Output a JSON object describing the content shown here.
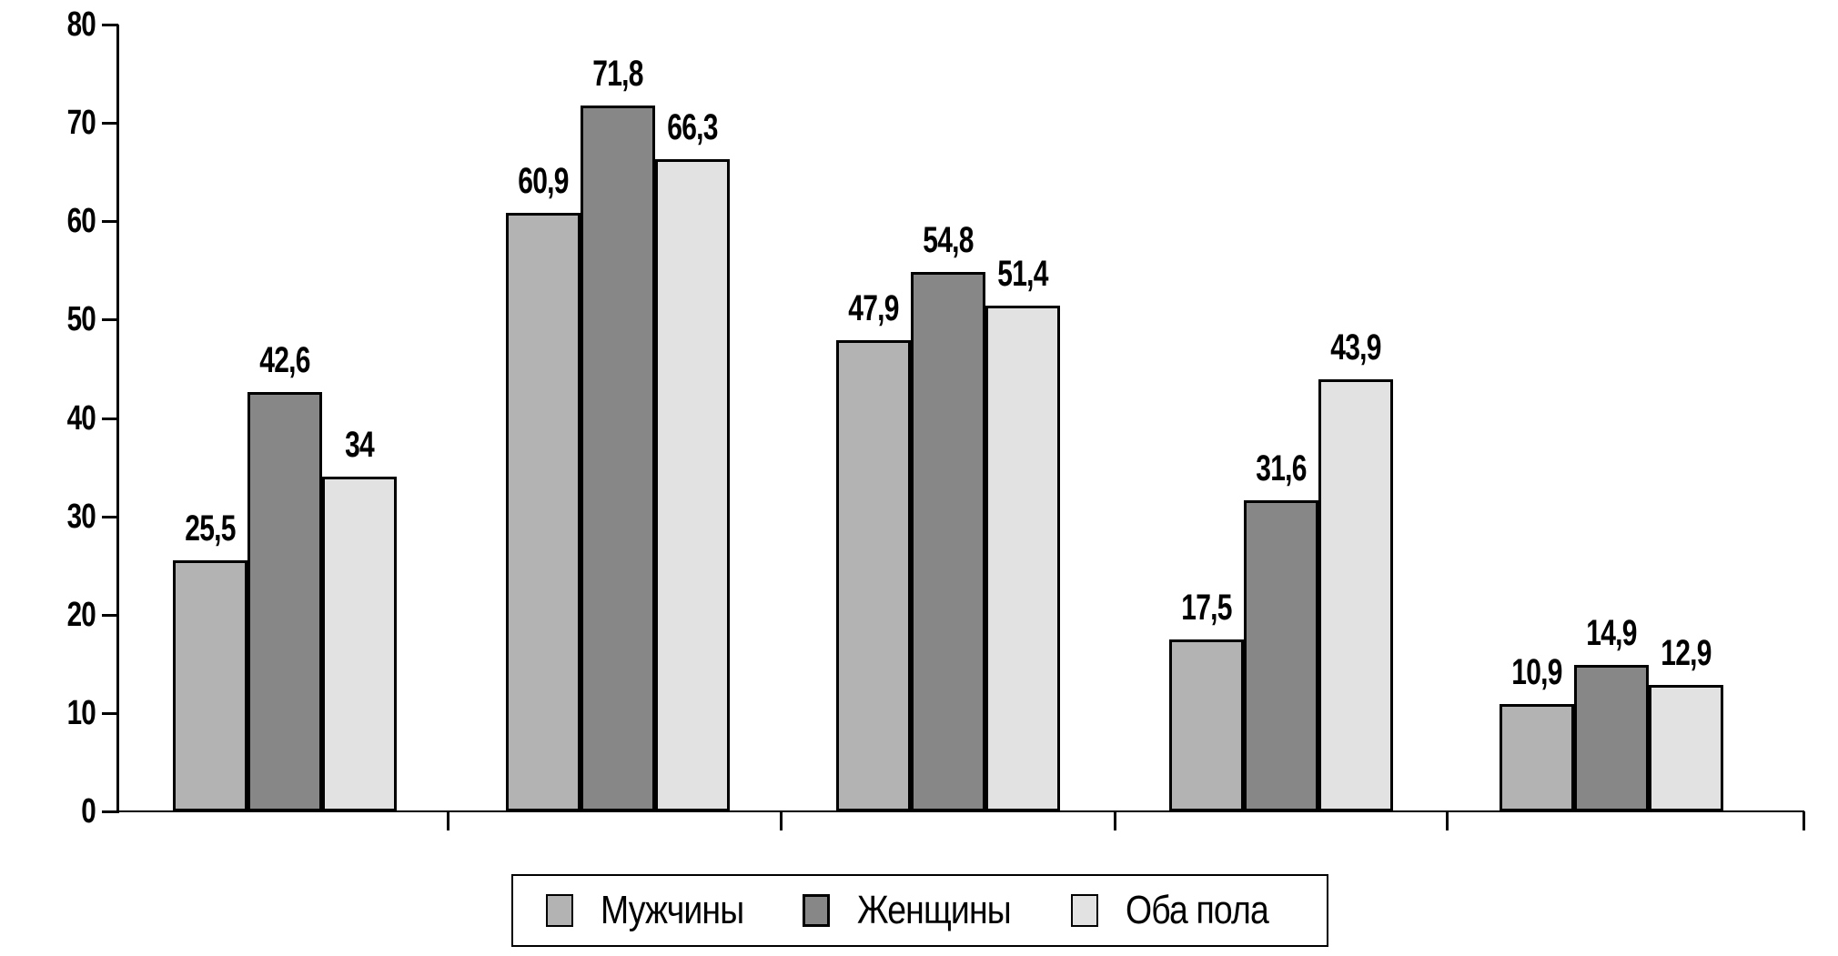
{
  "chart_data": {
    "type": "bar",
    "title": "",
    "xlabel": "",
    "ylabel": "",
    "categories": [
      "",
      "",
      "",
      "",
      ""
    ],
    "series": [
      {
        "name": "Мужчины",
        "color": "#b3b3b3",
        "values": [
          25.5,
          60.9,
          47.9,
          17.5,
          10.9
        ]
      },
      {
        "name": "Женщины",
        "color": "#878787",
        "values": [
          42.6,
          71.8,
          54.8,
          31.6,
          14.9
        ]
      },
      {
        "name": "Оба пола",
        "color": "#e2e2e2",
        "values": [
          34,
          66.3,
          51.4,
          43.9,
          12.9
        ]
      }
    ],
    "value_labels": [
      [
        "25,5",
        "60,9",
        "47,9",
        "17,5",
        "10,9"
      ],
      [
        "42,6",
        "71,8",
        "54,8",
        "31,6",
        "14,9"
      ],
      [
        "34",
        "66,3",
        "51,4",
        "43,9",
        "12,9"
      ]
    ],
    "ylim": [
      0,
      80
    ],
    "ytick_step": 10,
    "ytick_labels": [
      "0",
      "10",
      "20",
      "30",
      "40",
      "50",
      "60",
      "70",
      "80"
    ],
    "grid": false,
    "legend_position": "bottom",
    "decimal_separator": ",",
    "bar_border_color": "#000000",
    "axis_color": "#000000",
    "background_color": "#ffffff"
  },
  "legend": {
    "items": [
      {
        "label": "Мужчины",
        "color": "#b3b3b3"
      },
      {
        "label": "Женщины",
        "color": "#878787"
      },
      {
        "label": "Оба пола",
        "color": "#e2e2e2"
      }
    ]
  }
}
